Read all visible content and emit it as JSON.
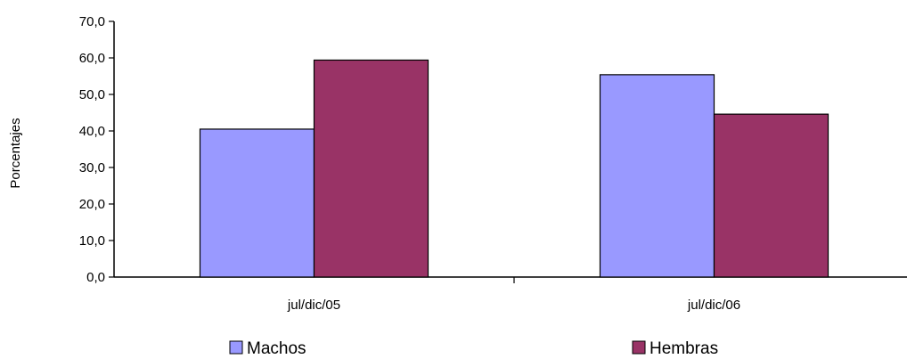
{
  "chart_data": {
    "type": "bar",
    "title": "",
    "xlabel": "",
    "ylabel": "Porcentajes",
    "categories": [
      "jul/dic/05",
      "jul/dic/06"
    ],
    "series": [
      {
        "name": "Machos",
        "values": [
          40.5,
          55.4
        ],
        "color": "#9999ff"
      },
      {
        "name": "Hembras",
        "values": [
          59.4,
          44.6
        ],
        "color": "#993366"
      }
    ],
    "ylim": [
      0,
      70
    ],
    "yticks": [
      "0,0",
      "10,0",
      "20,0",
      "30,0",
      "40,0",
      "50,0",
      "60,0",
      "70,0"
    ],
    "grid": false,
    "legend_position": "bottom"
  }
}
